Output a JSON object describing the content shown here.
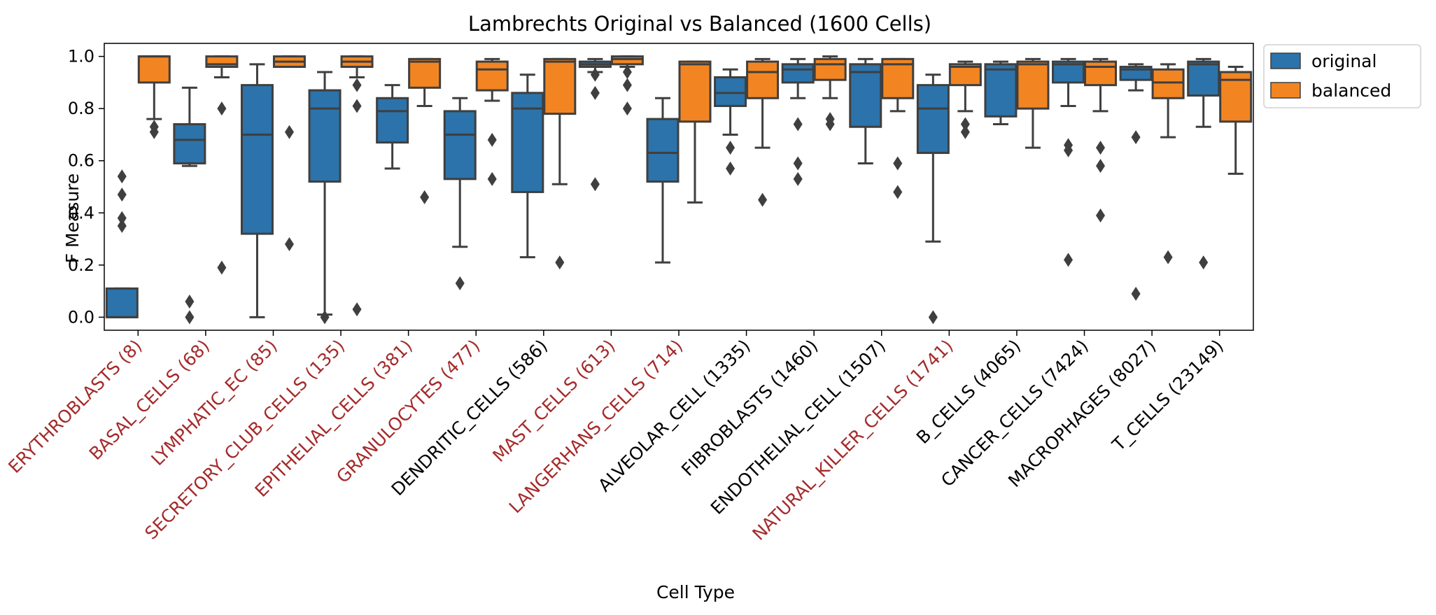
{
  "chart_data": {
    "type": "box",
    "title": "Lambrechts Original vs Balanced (1600 Cells)",
    "xlabel": "Cell Type",
    "ylabel": "F Measure",
    "ylim": [
      -0.05,
      1.05
    ],
    "yticks": [
      "0.0",
      "0.2",
      "0.4",
      "0.6",
      "0.8",
      "1.0"
    ],
    "grid": false,
    "legend_position": "outside-top-right",
    "colors": {
      "original": "#2b73aa",
      "balanced": "#f28522",
      "highlight_label": "#a52a2a",
      "normal_label": "#000000",
      "box_edge": "#3f3f3f"
    },
    "categories": [
      {
        "label": "ERYTHROBLASTS (8)",
        "highlight": true
      },
      {
        "label": "BASAL_CELLS (68)",
        "highlight": true
      },
      {
        "label": "LYMPHATIC_EC (85)",
        "highlight": true
      },
      {
        "label": "SECRETORY_CLUB_CELLS (135)",
        "highlight": true
      },
      {
        "label": "EPITHELIAL_CELLS (381)",
        "highlight": true
      },
      {
        "label": "GRANULOCYTES (477)",
        "highlight": true
      },
      {
        "label": "DENDRITIC_CELLS (586)",
        "highlight": false
      },
      {
        "label": "MAST_CELLS (613)",
        "highlight": true
      },
      {
        "label": "LANGERHANS_CELLS (714)",
        "highlight": true
      },
      {
        "label": "ALVEOLAR_CELL (1335)",
        "highlight": false
      },
      {
        "label": "FIBROBLASTS (1460)",
        "highlight": false
      },
      {
        "label": "ENDOTHELIAL_CELL (1507)",
        "highlight": false
      },
      {
        "label": "NATURAL_KILLER_CELLS (1741)",
        "highlight": true
      },
      {
        "label": "B_CELLS (4065)",
        "highlight": false
      },
      {
        "label": "CANCER_CELLS (7424)",
        "highlight": false
      },
      {
        "label": "MACROPHAGES (8027)",
        "highlight": false
      },
      {
        "label": "T_CELLS (23149)",
        "highlight": false
      }
    ],
    "series": [
      {
        "name": "original",
        "boxes": [
          {
            "q1": 0.0,
            "median": 0.0,
            "q3": 0.11,
            "whislo": 0.0,
            "whishi": 0.11,
            "fliers": [
              0.54,
              0.47,
              0.38,
              0.35
            ]
          },
          {
            "q1": 0.59,
            "median": 0.68,
            "q3": 0.74,
            "whislo": 0.58,
            "whishi": 0.88,
            "fliers": [
              0.06,
              0.0
            ]
          },
          {
            "q1": 0.32,
            "median": 0.7,
            "q3": 0.89,
            "whislo": 0.0,
            "whishi": 0.97,
            "fliers": []
          },
          {
            "q1": 0.52,
            "median": 0.8,
            "q3": 0.87,
            "whislo": 0.01,
            "whishi": 0.94,
            "fliers": [
              0.0
            ]
          },
          {
            "q1": 0.67,
            "median": 0.79,
            "q3": 0.84,
            "whislo": 0.57,
            "whishi": 0.89,
            "fliers": []
          },
          {
            "q1": 0.53,
            "median": 0.7,
            "q3": 0.79,
            "whislo": 0.27,
            "whishi": 0.84,
            "fliers": [
              0.13
            ]
          },
          {
            "q1": 0.48,
            "median": 0.8,
            "q3": 0.86,
            "whislo": 0.23,
            "whishi": 0.93,
            "fliers": []
          },
          {
            "q1": 0.96,
            "median": 0.97,
            "q3": 0.98,
            "whislo": 0.94,
            "whishi": 0.99,
            "fliers": [
              0.93,
              0.86,
              0.51
            ]
          },
          {
            "q1": 0.52,
            "median": 0.63,
            "q3": 0.76,
            "whislo": 0.21,
            "whishi": 0.84,
            "fliers": []
          },
          {
            "q1": 0.81,
            "median": 0.86,
            "q3": 0.92,
            "whislo": 0.7,
            "whishi": 0.95,
            "fliers": [
              0.65,
              0.57
            ]
          },
          {
            "q1": 0.9,
            "median": 0.95,
            "q3": 0.97,
            "whislo": 0.84,
            "whishi": 0.99,
            "fliers": [
              0.74,
              0.59,
              0.53
            ]
          },
          {
            "q1": 0.73,
            "median": 0.94,
            "q3": 0.97,
            "whislo": 0.59,
            "whishi": 0.99,
            "fliers": []
          },
          {
            "q1": 0.63,
            "median": 0.8,
            "q3": 0.89,
            "whislo": 0.29,
            "whishi": 0.93,
            "fliers": [
              0.0
            ]
          },
          {
            "q1": 0.77,
            "median": 0.95,
            "q3": 0.97,
            "whislo": 0.74,
            "whishi": 0.98,
            "fliers": []
          },
          {
            "q1": 0.9,
            "median": 0.97,
            "q3": 0.98,
            "whislo": 0.81,
            "whishi": 0.99,
            "fliers": [
              0.66,
              0.64,
              0.22
            ]
          },
          {
            "q1": 0.91,
            "median": 0.95,
            "q3": 0.96,
            "whislo": 0.87,
            "whishi": 0.97,
            "fliers": [
              0.69,
              0.09
            ]
          },
          {
            "q1": 0.85,
            "median": 0.97,
            "q3": 0.98,
            "whislo": 0.73,
            "whishi": 0.99,
            "fliers": [
              0.21
            ]
          }
        ]
      },
      {
        "name": "balanced",
        "boxes": [
          {
            "q1": 0.9,
            "median": 1.0,
            "q3": 1.0,
            "whislo": 0.76,
            "whishi": 1.0,
            "fliers": [
              0.73,
              0.71
            ]
          },
          {
            "q1": 0.96,
            "median": 0.97,
            "q3": 1.0,
            "whislo": 0.92,
            "whishi": 1.0,
            "fliers": [
              0.8,
              0.19
            ]
          },
          {
            "q1": 0.96,
            "median": 0.98,
            "q3": 1.0,
            "whislo": 0.96,
            "whishi": 1.0,
            "fliers": [
              0.71,
              0.28
            ]
          },
          {
            "q1": 0.96,
            "median": 0.98,
            "q3": 1.0,
            "whislo": 0.92,
            "whishi": 1.0,
            "fliers": [
              0.89,
              0.81,
              0.03
            ]
          },
          {
            "q1": 0.88,
            "median": 0.98,
            "q3": 0.99,
            "whislo": 0.81,
            "whishi": 0.99,
            "fliers": [
              0.46
            ]
          },
          {
            "q1": 0.87,
            "median": 0.95,
            "q3": 0.98,
            "whislo": 0.83,
            "whishi": 0.99,
            "fliers": [
              0.68,
              0.53
            ]
          },
          {
            "q1": 0.78,
            "median": 0.98,
            "q3": 0.99,
            "whislo": 0.51,
            "whishi": 0.99,
            "fliers": [
              0.21
            ]
          },
          {
            "q1": 0.97,
            "median": 0.99,
            "q3": 1.0,
            "whislo": 0.96,
            "whishi": 1.0,
            "fliers": [
              0.94,
              0.89,
              0.8
            ]
          },
          {
            "q1": 0.75,
            "median": 0.97,
            "q3": 0.98,
            "whislo": 0.44,
            "whishi": 0.98,
            "fliers": []
          },
          {
            "q1": 0.84,
            "median": 0.94,
            "q3": 0.98,
            "whislo": 0.65,
            "whishi": 0.99,
            "fliers": [
              0.45
            ]
          },
          {
            "q1": 0.91,
            "median": 0.97,
            "q3": 0.99,
            "whislo": 0.84,
            "whishi": 1.0,
            "fliers": [
              0.76,
              0.74
            ]
          },
          {
            "q1": 0.84,
            "median": 0.97,
            "q3": 0.99,
            "whislo": 0.79,
            "whishi": 0.99,
            "fliers": [
              0.59,
              0.48
            ]
          },
          {
            "q1": 0.89,
            "median": 0.96,
            "q3": 0.97,
            "whislo": 0.79,
            "whishi": 0.98,
            "fliers": [
              0.74,
              0.71
            ]
          },
          {
            "q1": 0.8,
            "median": 0.97,
            "q3": 0.98,
            "whislo": 0.65,
            "whishi": 0.99,
            "fliers": []
          },
          {
            "q1": 0.89,
            "median": 0.96,
            "q3": 0.98,
            "whislo": 0.79,
            "whishi": 0.99,
            "fliers": [
              0.65,
              0.58,
              0.39
            ]
          },
          {
            "q1": 0.84,
            "median": 0.9,
            "q3": 0.95,
            "whislo": 0.69,
            "whishi": 0.97,
            "fliers": [
              0.23
            ]
          },
          {
            "q1": 0.75,
            "median": 0.91,
            "q3": 0.94,
            "whislo": 0.55,
            "whishi": 0.96,
            "fliers": []
          }
        ]
      }
    ]
  }
}
